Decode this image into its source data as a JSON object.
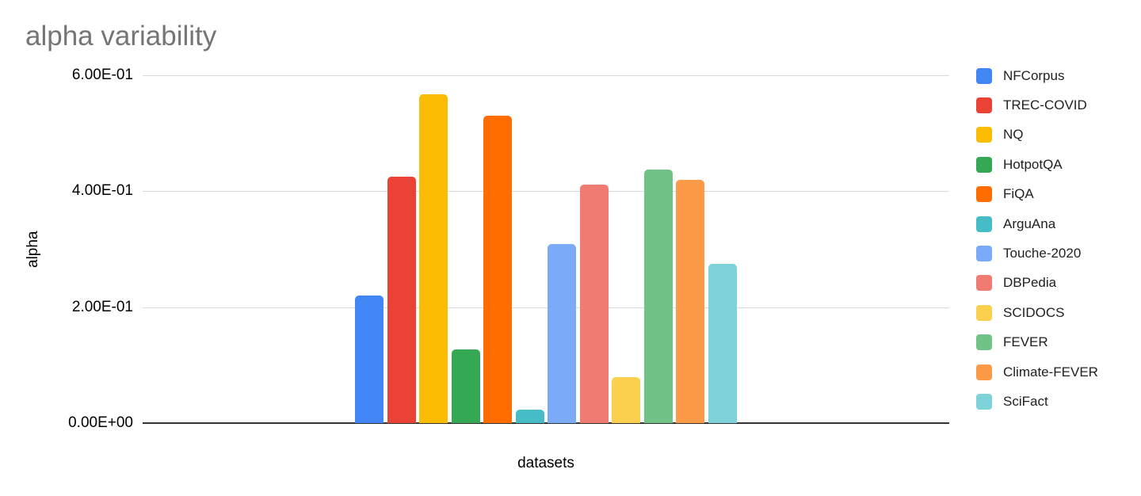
{
  "title": "alpha variability",
  "chart_data": {
    "type": "bar",
    "title": "alpha variability",
    "xlabel": "datasets",
    "ylabel": "alpha",
    "ylim": [
      0,
      0.6
    ],
    "grid": true,
    "legend_position": "right",
    "y_ticks": [
      {
        "label": "0.00E+00",
        "value": 0.0
      },
      {
        "label": "2.00E-01",
        "value": 0.2
      },
      {
        "label": "4.00E-01",
        "value": 0.4
      },
      {
        "label": "6.00E-01",
        "value": 0.6
      }
    ],
    "categories": [
      "NFCorpus",
      "TREC-COVID",
      "NQ",
      "HotpotQA",
      "FiQA",
      "ArguAna",
      "Touche-2020",
      "DBPedia",
      "SCIDOCS",
      "FEVER",
      "Climate-FEVER",
      "SciFact"
    ],
    "values": [
      0.22,
      0.425,
      0.567,
      0.127,
      0.53,
      0.023,
      0.308,
      0.411,
      0.079,
      0.437,
      0.419,
      0.275
    ],
    "colors": [
      "#4285F4",
      "#EA4335",
      "#FBBC04",
      "#34A853",
      "#FF6D01",
      "#46BDC6",
      "#7BAAF7",
      "#F07B72",
      "#FCD04F",
      "#71C287",
      "#FB9A47",
      "#7FD2D9"
    ]
  },
  "ui_colors": {
    "background": "#ffffff",
    "title_text": "#757575",
    "axis_text": "#000000",
    "gridline": "#d9d9d9",
    "baseline": "#333333",
    "legend_text": "#212121"
  }
}
